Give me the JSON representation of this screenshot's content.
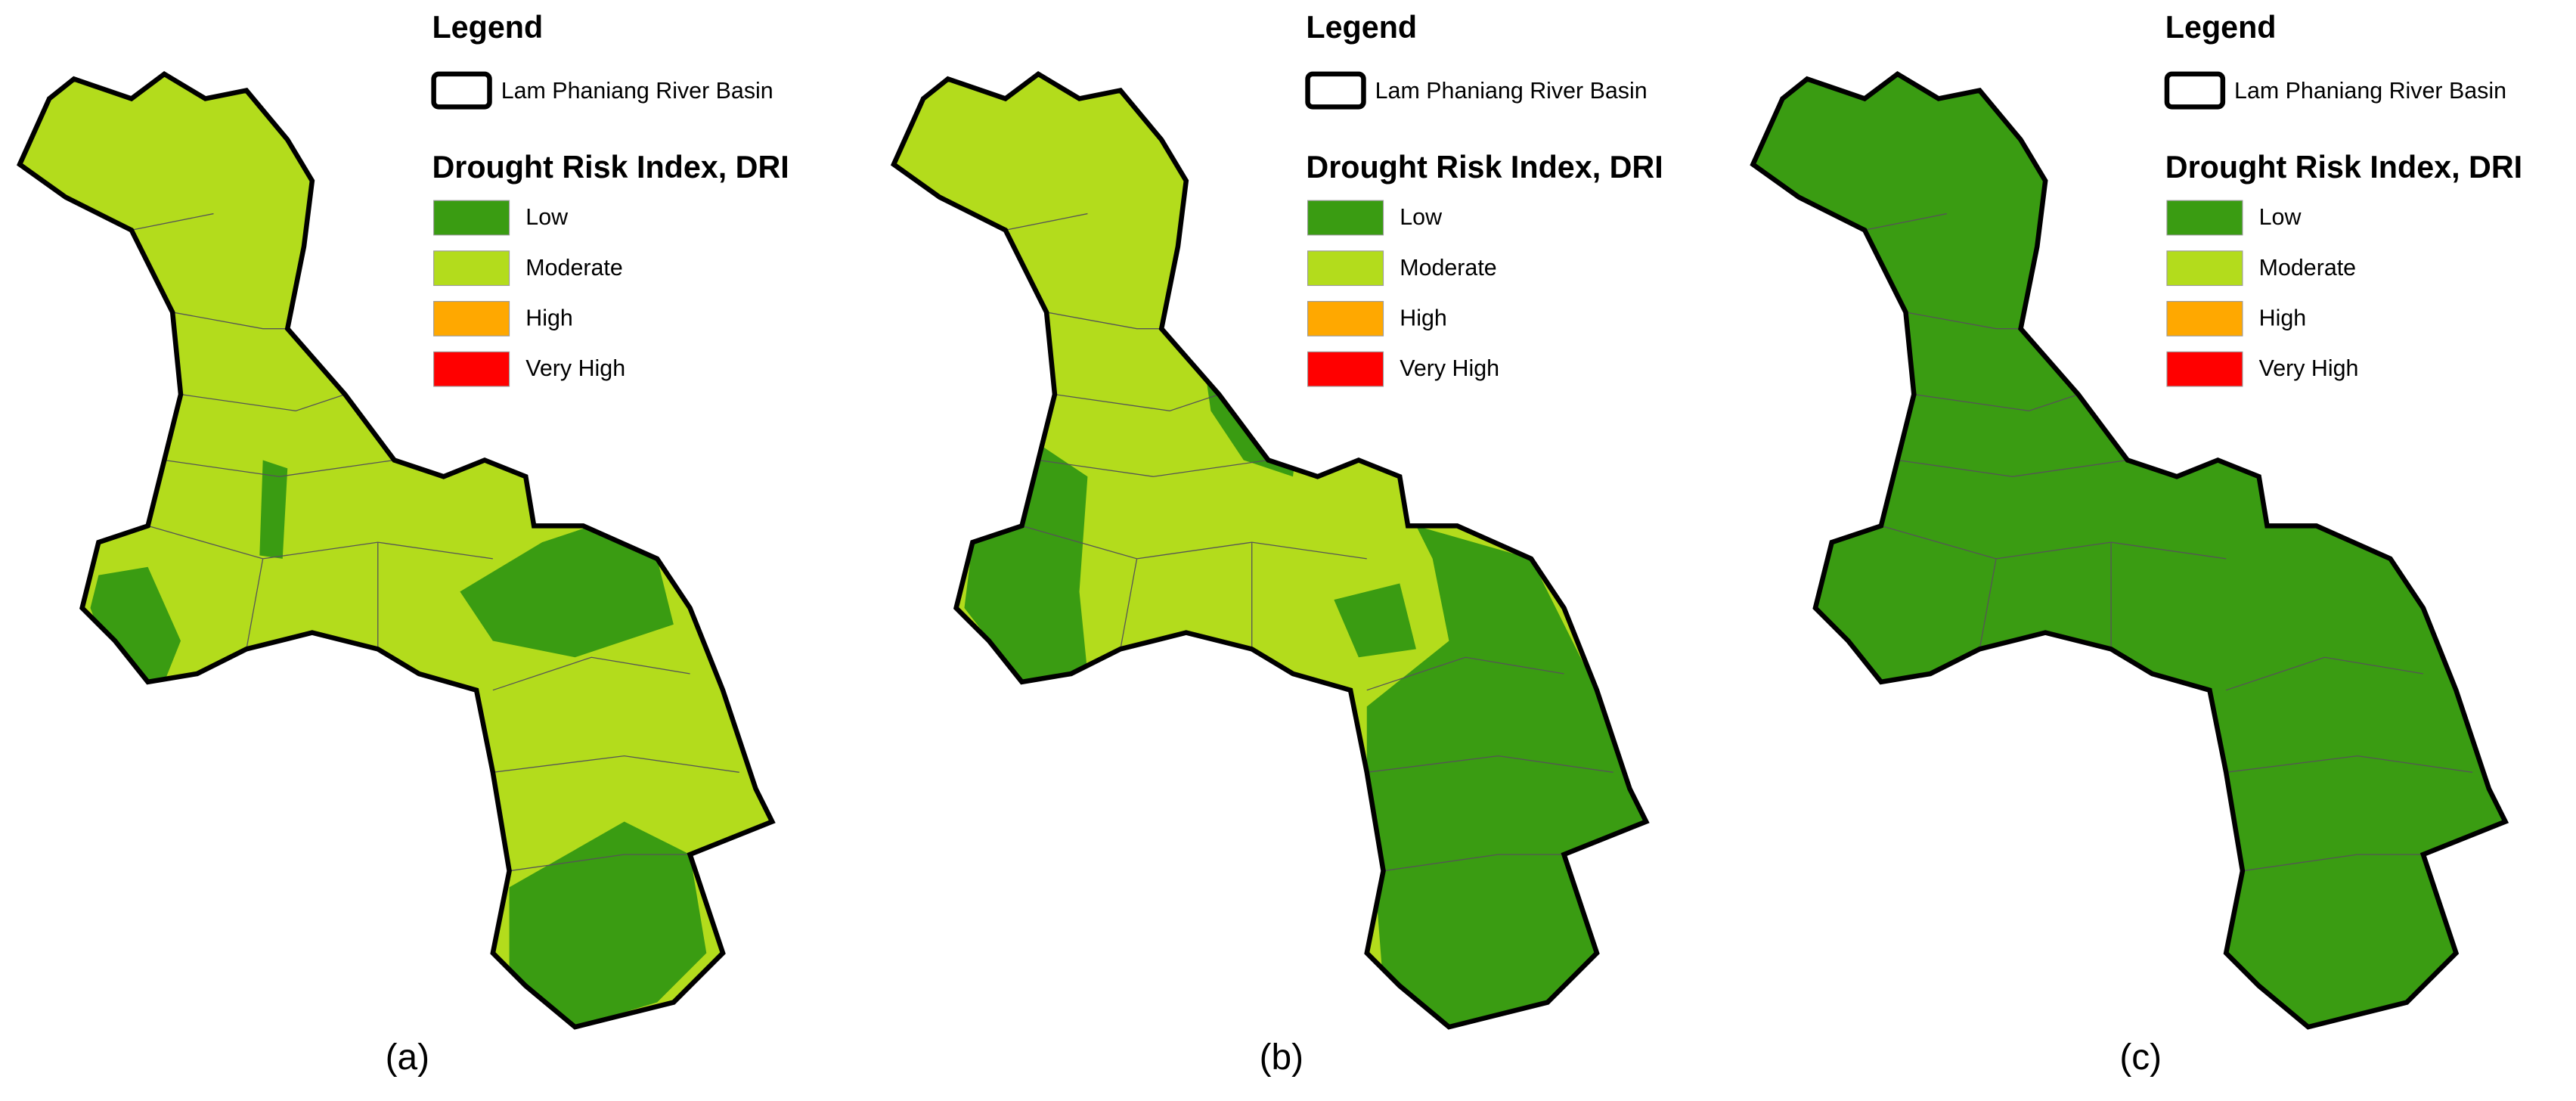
{
  "legend": {
    "title": "Legend",
    "boundary": "Lam Phaniang River Basin",
    "index_title": "Drought Risk Index, DRI",
    "classes": [
      {
        "name": "Low",
        "color": "#3a9c12"
      },
      {
        "name": "Moderate",
        "color": "#b3dc1c"
      },
      {
        "name": "High",
        "color": "#ffa800"
      },
      {
        "name": "Very High",
        "color": "#ff0000"
      }
    ]
  },
  "panels": [
    {
      "caption": "(a)"
    },
    {
      "caption": "(b)"
    },
    {
      "caption": "(c)"
    }
  ]
}
